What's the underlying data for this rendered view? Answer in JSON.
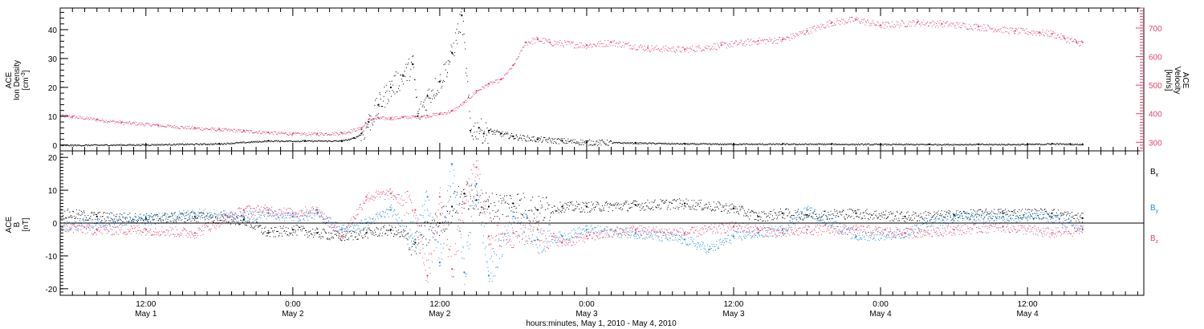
{
  "colors": {
    "density": "#000000",
    "velocity": "#e0456e",
    "bx": "#000000",
    "by": "#1e8fe0",
    "bz": "#e0456e",
    "axis": "#000000"
  },
  "chart_data": [
    {
      "type": "scatter",
      "panel": "top",
      "ylabel_left": [
        "ACE",
        "Ion Density",
        "[cm^-3]"
      ],
      "ylabel_right": [
        "ACE",
        "Velocity",
        "[km/s]"
      ],
      "y_left": {
        "ylim": [
          -2,
          47.5
        ],
        "ticks": [
          "0",
          "10",
          "20",
          "30",
          "40"
        ],
        "tick_values": [
          0,
          10,
          20,
          30,
          40
        ]
      },
      "y_right": {
        "ylim": [
          270,
          770
        ],
        "ticks": [
          "300",
          "400",
          "500",
          "600",
          "700"
        ],
        "tick_values": [
          300,
          400,
          500,
          600,
          700
        ]
      },
      "xlim_hours": [
        5,
        93.5
      ],
      "series": [
        {
          "key": "density",
          "axis": "left",
          "x": [
            5,
            12,
            18,
            22,
            25,
            28,
            29,
            29.6,
            30.2,
            31,
            32,
            33,
            33.8,
            34.2,
            35,
            36,
            37,
            37.8,
            38.5,
            39.2,
            39.6,
            40,
            41,
            42,
            44,
            46,
            48,
            52,
            56,
            60,
            64,
            68,
            72,
            76,
            80,
            84,
            86,
            87.5,
            88.5
          ],
          "y": [
            0,
            0.2,
            0.5,
            1.5,
            1.5,
            1.5,
            2.5,
            4,
            8,
            14,
            20,
            24,
            28,
            10,
            17,
            22,
            32,
            45,
            5,
            6,
            4,
            5,
            4,
            3,
            2,
            1.5,
            1,
            0.8,
            0.5,
            0.4,
            0.4,
            0.4,
            0.3,
            0.3,
            0.3,
            0.3,
            0.5,
            0.4,
            0.3
          ]
        },
        {
          "key": "velocity",
          "axis": "right",
          "x": [
            5,
            6,
            8,
            10,
            13,
            16,
            18,
            20,
            22,
            24,
            26,
            28,
            29.6,
            30.2,
            31,
            32,
            33,
            34,
            35,
            36,
            37,
            38,
            39,
            40,
            41,
            42,
            43,
            44,
            45,
            48,
            50,
            53,
            56,
            59,
            62,
            64,
            66,
            68,
            70,
            72,
            75,
            77,
            80,
            83,
            85,
            86,
            87,
            88,
            88.5
          ],
          "y": [
            395,
            390,
            380,
            370,
            360,
            350,
            345,
            340,
            335,
            330,
            330,
            333,
            350,
            380,
            385,
            385,
            388,
            390,
            393,
            400,
            410,
            440,
            480,
            505,
            520,
            570,
            650,
            660,
            650,
            640,
            650,
            630,
            625,
            640,
            655,
            660,
            690,
            720,
            730,
            710,
            720,
            715,
            705,
            690,
            685,
            680,
            665,
            650,
            650
          ]
        }
      ]
    },
    {
      "type": "scatter",
      "panel": "bottom",
      "ylabel_left": [
        "ACE",
        "B",
        "[nT]"
      ],
      "y_left": {
        "ylim": [
          -22,
          22
        ],
        "ticks": [
          "20",
          "10",
          "0",
          "-10",
          "-20"
        ],
        "tick_values": [
          20,
          10,
          0,
          -10,
          -20
        ]
      },
      "xlim_hours": [
        5,
        93.5
      ],
      "series": [
        {
          "key": "bx",
          "name": "Bx",
          "label_main": "B",
          "label_sub": "x",
          "x": [
            5,
            8,
            12,
            16,
            20,
            22,
            24,
            26,
            28,
            30,
            32,
            34,
            36,
            37,
            38,
            39,
            40,
            42,
            44,
            46,
            48,
            52,
            56,
            60,
            62,
            64,
            66,
            70,
            74,
            78,
            82,
            86,
            88.5
          ],
          "y": [
            3,
            2,
            1.5,
            2,
            1,
            -3,
            -2,
            -3,
            -4,
            -3,
            -2,
            -6,
            0,
            5,
            9,
            7,
            5,
            6,
            4,
            5,
            5,
            5.5,
            6,
            4.5,
            2,
            3,
            2.5,
            3,
            2,
            2.5,
            3,
            3,
            1.5
          ]
        },
        {
          "key": "by",
          "name": "By",
          "label_main": "B",
          "label_sub": "y",
          "x": [
            5,
            8,
            12,
            16,
            20,
            22,
            24,
            26,
            28,
            30,
            32,
            34,
            35,
            36,
            37,
            38,
            39,
            40,
            42,
            44,
            46,
            48,
            52,
            56,
            58,
            60,
            62,
            64,
            66,
            70,
            74,
            78,
            82,
            86,
            88.5
          ],
          "y": [
            -1,
            0,
            1,
            3,
            2,
            3,
            2,
            3,
            -2,
            0,
            4,
            -5,
            8,
            -12,
            18,
            -15,
            12,
            -16,
            2,
            -5,
            -4,
            -2,
            -3,
            -5,
            -8,
            -4,
            -3,
            -2,
            4,
            -4,
            -3,
            2,
            2,
            2,
            -2
          ]
        },
        {
          "key": "bz",
          "name": "Bz",
          "label_main": "B",
          "label_sub": "z",
          "x": [
            5,
            8,
            12,
            16,
            20,
            22,
            24,
            26,
            28,
            30,
            32,
            34,
            35,
            36,
            37,
            38,
            39,
            40,
            42,
            44,
            46,
            48,
            52,
            56,
            60,
            62,
            64,
            66,
            70,
            74,
            78,
            82,
            86,
            88.5
          ],
          "y": [
            -1,
            -2,
            -2,
            -3,
            4,
            4,
            3,
            4,
            -4,
            8,
            9,
            4,
            -16,
            8,
            -14,
            6,
            17,
            -4,
            -3,
            -2,
            -6,
            -4,
            -2,
            -3,
            -1,
            -2,
            -3,
            -2,
            -2,
            -3,
            -2,
            -1,
            -3,
            -2
          ]
        }
      ]
    }
  ],
  "x_axis": {
    "major_hours": [
      12,
      24,
      36,
      48,
      60,
      72,
      84,
      96
    ],
    "minor_step_hours": 1,
    "tick_times": [
      "12:00",
      "0:00",
      "12:00",
      "0:00",
      "12:00",
      "0:00",
      "12:00"
    ],
    "tick_dates": [
      "May 1",
      "May 2",
      "May 2",
      "May 3",
      "May 3",
      "May 4",
      "May 4"
    ],
    "title": "hours:minutes, May  1, 2010 - May  4, 2010"
  }
}
